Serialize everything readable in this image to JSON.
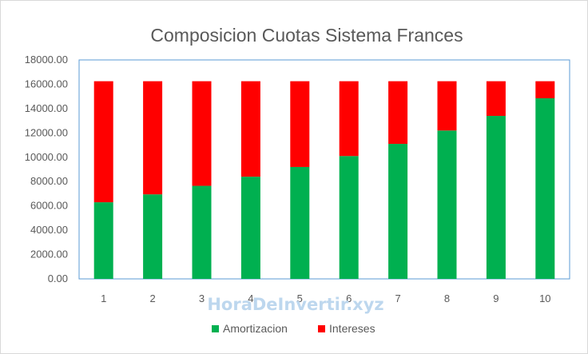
{
  "watermark": "HoraDeInvertir.xyz",
  "chart_data": {
    "type": "bar",
    "stacked": true,
    "title": "Composicion Cuotas Sistema Frances",
    "xlabel": "",
    "ylabel": "",
    "categories": [
      "1",
      "2",
      "3",
      "4",
      "5",
      "6",
      "7",
      "8",
      "9",
      "10"
    ],
    "series": [
      {
        "name": "Amortizacion",
        "color": "#00b050",
        "values": [
          6300,
          6950,
          7650,
          8400,
          9200,
          10100,
          11100,
          12200,
          13400,
          14850
        ]
      },
      {
        "name": "Intereses",
        "color": "#ff0000",
        "values": [
          9950,
          9300,
          8600,
          7850,
          7050,
          6150,
          5150,
          4050,
          2850,
          1400
        ]
      }
    ],
    "ylim": [
      0,
      18000
    ],
    "yticks": [
      "0.00",
      "2000.00",
      "4000.00",
      "6000.00",
      "8000.00",
      "10000.00",
      "12000.00",
      "14000.00",
      "16000.00",
      "18000.00"
    ],
    "grid": false,
    "legend_position": "bottom"
  }
}
